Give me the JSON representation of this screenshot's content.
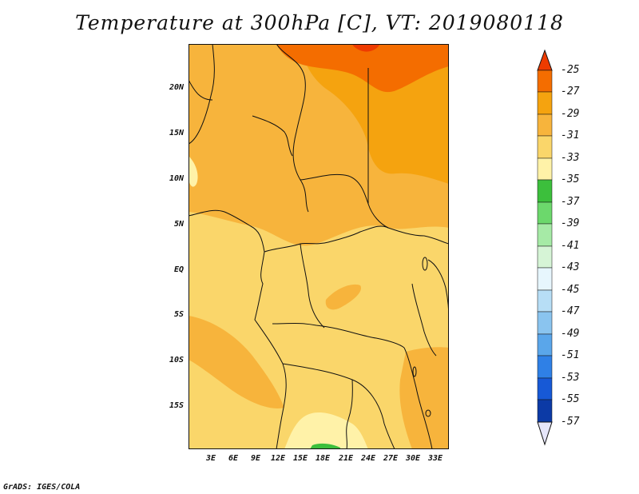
{
  "title": "Temperature at 300hPa [C], VT: 2019080118",
  "lat_labels": [
    "20N",
    "15N",
    "10N",
    "5N",
    "EQ",
    "5S",
    "10S",
    "15S"
  ],
  "lon_labels": [
    "3E",
    "6E",
    "9E",
    "12E",
    "15E",
    "18E",
    "21E",
    "24E",
    "27E",
    "30E",
    "33E"
  ],
  "colorbar": {
    "labels": [
      "-25",
      "-27",
      "-29",
      "-31",
      "-33",
      "-35",
      "-37",
      "-39",
      "-41",
      "-43",
      "-45",
      "-47",
      "-49",
      "-51",
      "-53",
      "-55",
      "-57"
    ],
    "colors": {
      "c_gt25": "#ee3b00",
      "c_25_27": "#f46d00",
      "c_27_29": "#f5a30f",
      "c_29_31": "#f7b43c",
      "c_31_33": "#fad66a",
      "c_33_35": "#fff2a8",
      "c_35_37": "#3cbf3c",
      "c_37_39": "#6cd86c",
      "c_39_41": "#a6eaa6",
      "c_41_43": "#d6f4d6",
      "c_43_45": "#e7f6fd",
      "c_45_47": "#b7def6",
      "c_47_49": "#8ac4ef",
      "c_49_51": "#5aa6ea",
      "c_51_53": "#2f80e6",
      "c_53_55": "#1759d6",
      "c_55_57": "#0c3aa6",
      "c_lt57": "#08166e",
      "c_bottom_tri": "#e6e6fa"
    }
  },
  "footer": "GrADS: IGES/COLA"
}
